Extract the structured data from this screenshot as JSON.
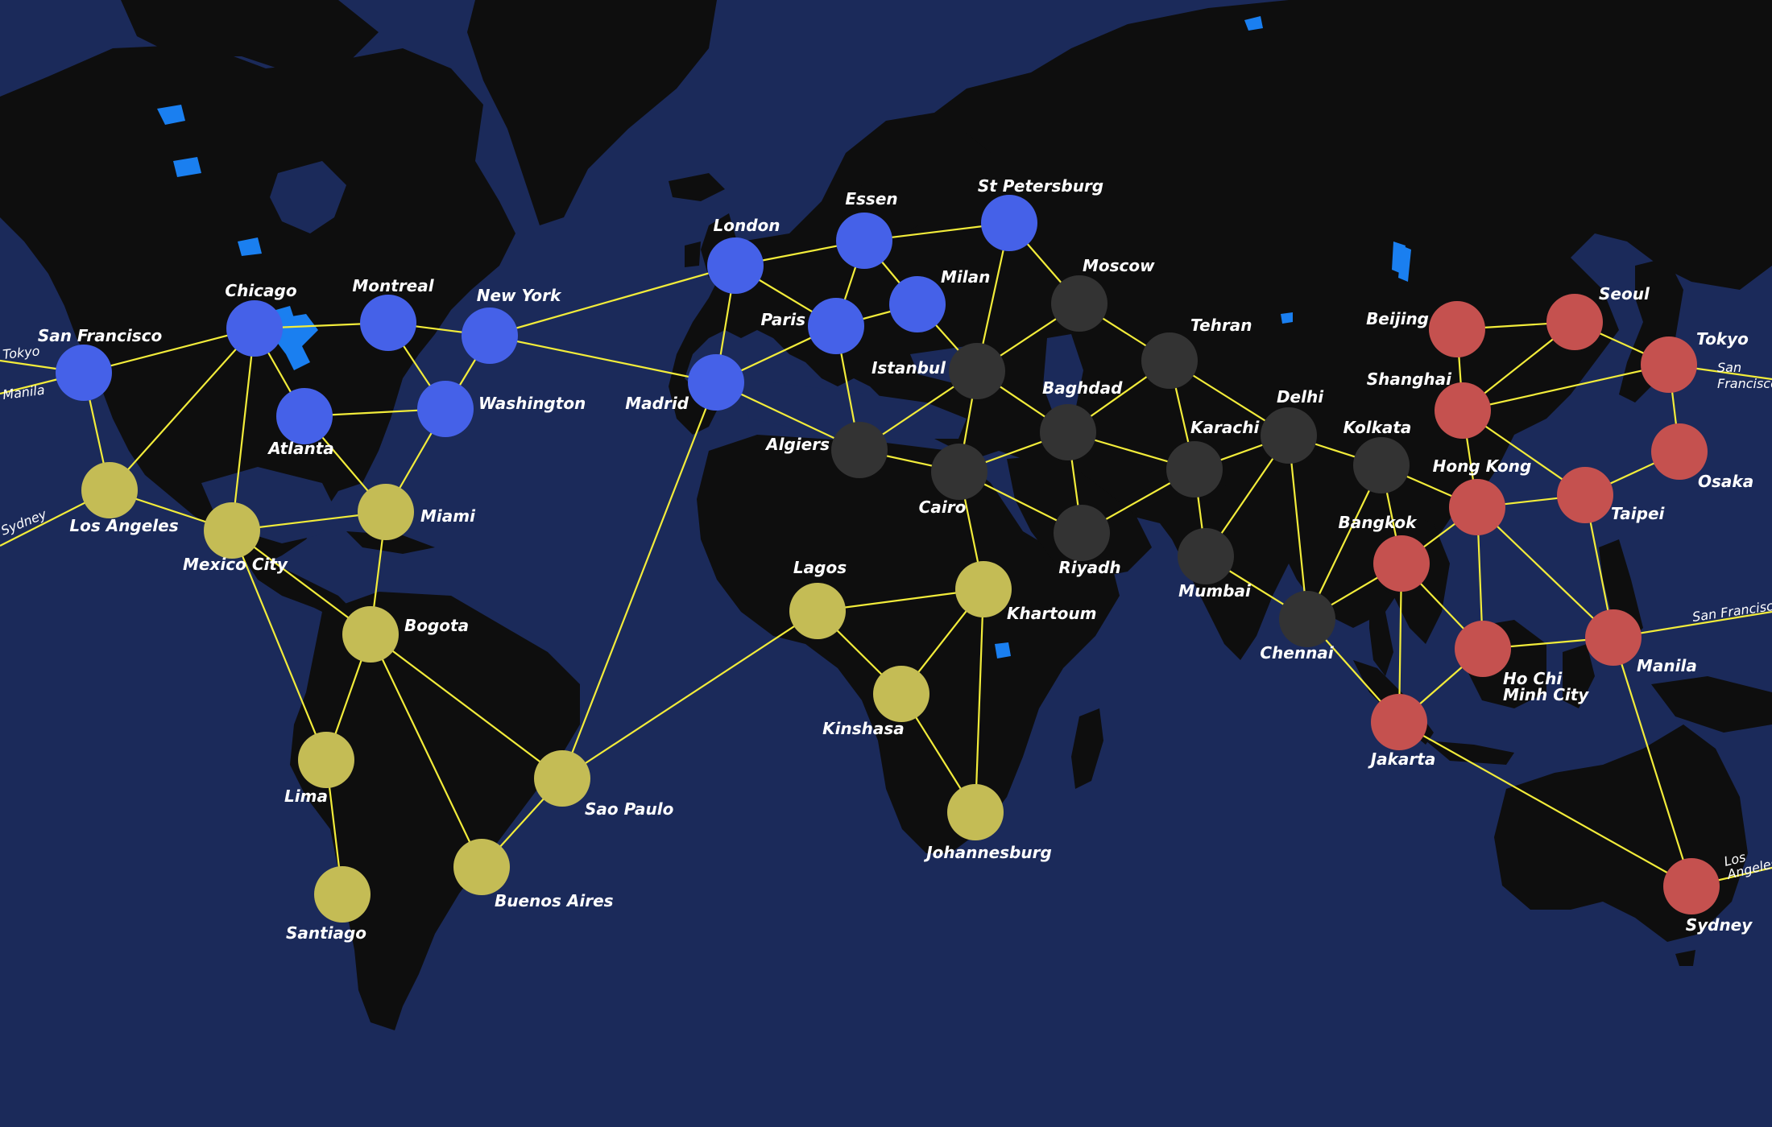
{
  "colors": {
    "ocean": "#1b2a5a",
    "land": "#0e0e0e",
    "lake": "#1a7ff0",
    "connection": "#f2ec3a",
    "label": "#ffffff",
    "blue": "#4561e8",
    "yellow": "#c4bc55",
    "black": "#333333",
    "red": "#c5514f"
  },
  "cities": [
    {
      "id": "san-francisco",
      "name": "San Francisco",
      "color": "blue"
    },
    {
      "id": "chicago",
      "name": "Chicago",
      "color": "blue"
    },
    {
      "id": "montreal",
      "name": "Montreal",
      "color": "blue"
    },
    {
      "id": "new-york",
      "name": "New York",
      "color": "blue"
    },
    {
      "id": "atlanta",
      "name": "Atlanta",
      "color": "blue"
    },
    {
      "id": "washington",
      "name": "Washington",
      "color": "blue"
    },
    {
      "id": "london",
      "name": "London",
      "color": "blue"
    },
    {
      "id": "essen",
      "name": "Essen",
      "color": "blue"
    },
    {
      "id": "st-petersburg",
      "name": "St Petersburg",
      "color": "blue"
    },
    {
      "id": "paris",
      "name": "Paris",
      "color": "blue"
    },
    {
      "id": "milan",
      "name": "Milan",
      "color": "blue"
    },
    {
      "id": "madrid",
      "name": "Madrid",
      "color": "blue"
    },
    {
      "id": "los-angeles",
      "name": "Los Angeles",
      "color": "yellow"
    },
    {
      "id": "mexico-city",
      "name": "Mexico City",
      "color": "yellow"
    },
    {
      "id": "miami",
      "name": "Miami",
      "color": "yellow"
    },
    {
      "id": "bogota",
      "name": "Bogota",
      "color": "yellow"
    },
    {
      "id": "lima",
      "name": "Lima",
      "color": "yellow"
    },
    {
      "id": "santiago",
      "name": "Santiago",
      "color": "yellow"
    },
    {
      "id": "buenos-aires",
      "name": "Buenos Aires",
      "color": "yellow"
    },
    {
      "id": "sao-paulo",
      "name": "Sao Paulo",
      "color": "yellow"
    },
    {
      "id": "lagos",
      "name": "Lagos",
      "color": "yellow"
    },
    {
      "id": "kinshasa",
      "name": "Kinshasa",
      "color": "yellow"
    },
    {
      "id": "khartoum",
      "name": "Khartoum",
      "color": "yellow"
    },
    {
      "id": "johannesburg",
      "name": "Johannesburg",
      "color": "yellow"
    },
    {
      "id": "moscow",
      "name": "Moscow",
      "color": "black"
    },
    {
      "id": "istanbul",
      "name": "Istanbul",
      "color": "black"
    },
    {
      "id": "algiers",
      "name": "Algiers",
      "color": "black"
    },
    {
      "id": "cairo",
      "name": "Cairo",
      "color": "black"
    },
    {
      "id": "baghdad",
      "name": "Baghdad",
      "color": "black"
    },
    {
      "id": "riyadh",
      "name": "Riyadh",
      "color": "black"
    },
    {
      "id": "tehran",
      "name": "Tehran",
      "color": "black"
    },
    {
      "id": "karachi",
      "name": "Karachi",
      "color": "black"
    },
    {
      "id": "delhi",
      "name": "Delhi",
      "color": "black"
    },
    {
      "id": "mumbai",
      "name": "Mumbai",
      "color": "black"
    },
    {
      "id": "chennai",
      "name": "Chennai",
      "color": "black"
    },
    {
      "id": "kolkata",
      "name": "Kolkata",
      "color": "black"
    },
    {
      "id": "beijing",
      "name": "Beijing",
      "color": "red"
    },
    {
      "id": "seoul",
      "name": "Seoul",
      "color": "red"
    },
    {
      "id": "tokyo",
      "name": "Tokyo",
      "color": "red"
    },
    {
      "id": "shanghai",
      "name": "Shanghai",
      "color": "red"
    },
    {
      "id": "osaka",
      "name": "Osaka",
      "color": "red"
    },
    {
      "id": "taipei",
      "name": "Taipei",
      "color": "red"
    },
    {
      "id": "hong-kong",
      "name": "Hong Kong",
      "color": "red"
    },
    {
      "id": "bangkok",
      "name": "Bangkok",
      "color": "red"
    },
    {
      "id": "ho-chi-minh-city",
      "name": "Ho Chi Minh City",
      "label_lines": [
        "Ho Chi",
        "Minh City"
      ],
      "color": "red"
    },
    {
      "id": "manila",
      "name": "Manila",
      "color": "red"
    },
    {
      "id": "jakarta",
      "name": "Jakarta",
      "color": "red"
    },
    {
      "id": "sydney",
      "name": "Sydney",
      "color": "red"
    }
  ],
  "edge_labels": [
    {
      "id": "tokyo-left",
      "text": "Tokyo"
    },
    {
      "id": "manila-left",
      "text": "Manila"
    },
    {
      "id": "sydney-left",
      "text": "Sydney"
    },
    {
      "id": "sf-right-top",
      "text": "San"
    },
    {
      "id": "sf-right-bottom",
      "text": "Francisco"
    },
    {
      "id": "sf-right-manila",
      "text": "San Francisco"
    },
    {
      "id": "la-right-top",
      "text": "Los"
    },
    {
      "id": "la-right-bottom",
      "text": "Angeles"
    }
  ]
}
